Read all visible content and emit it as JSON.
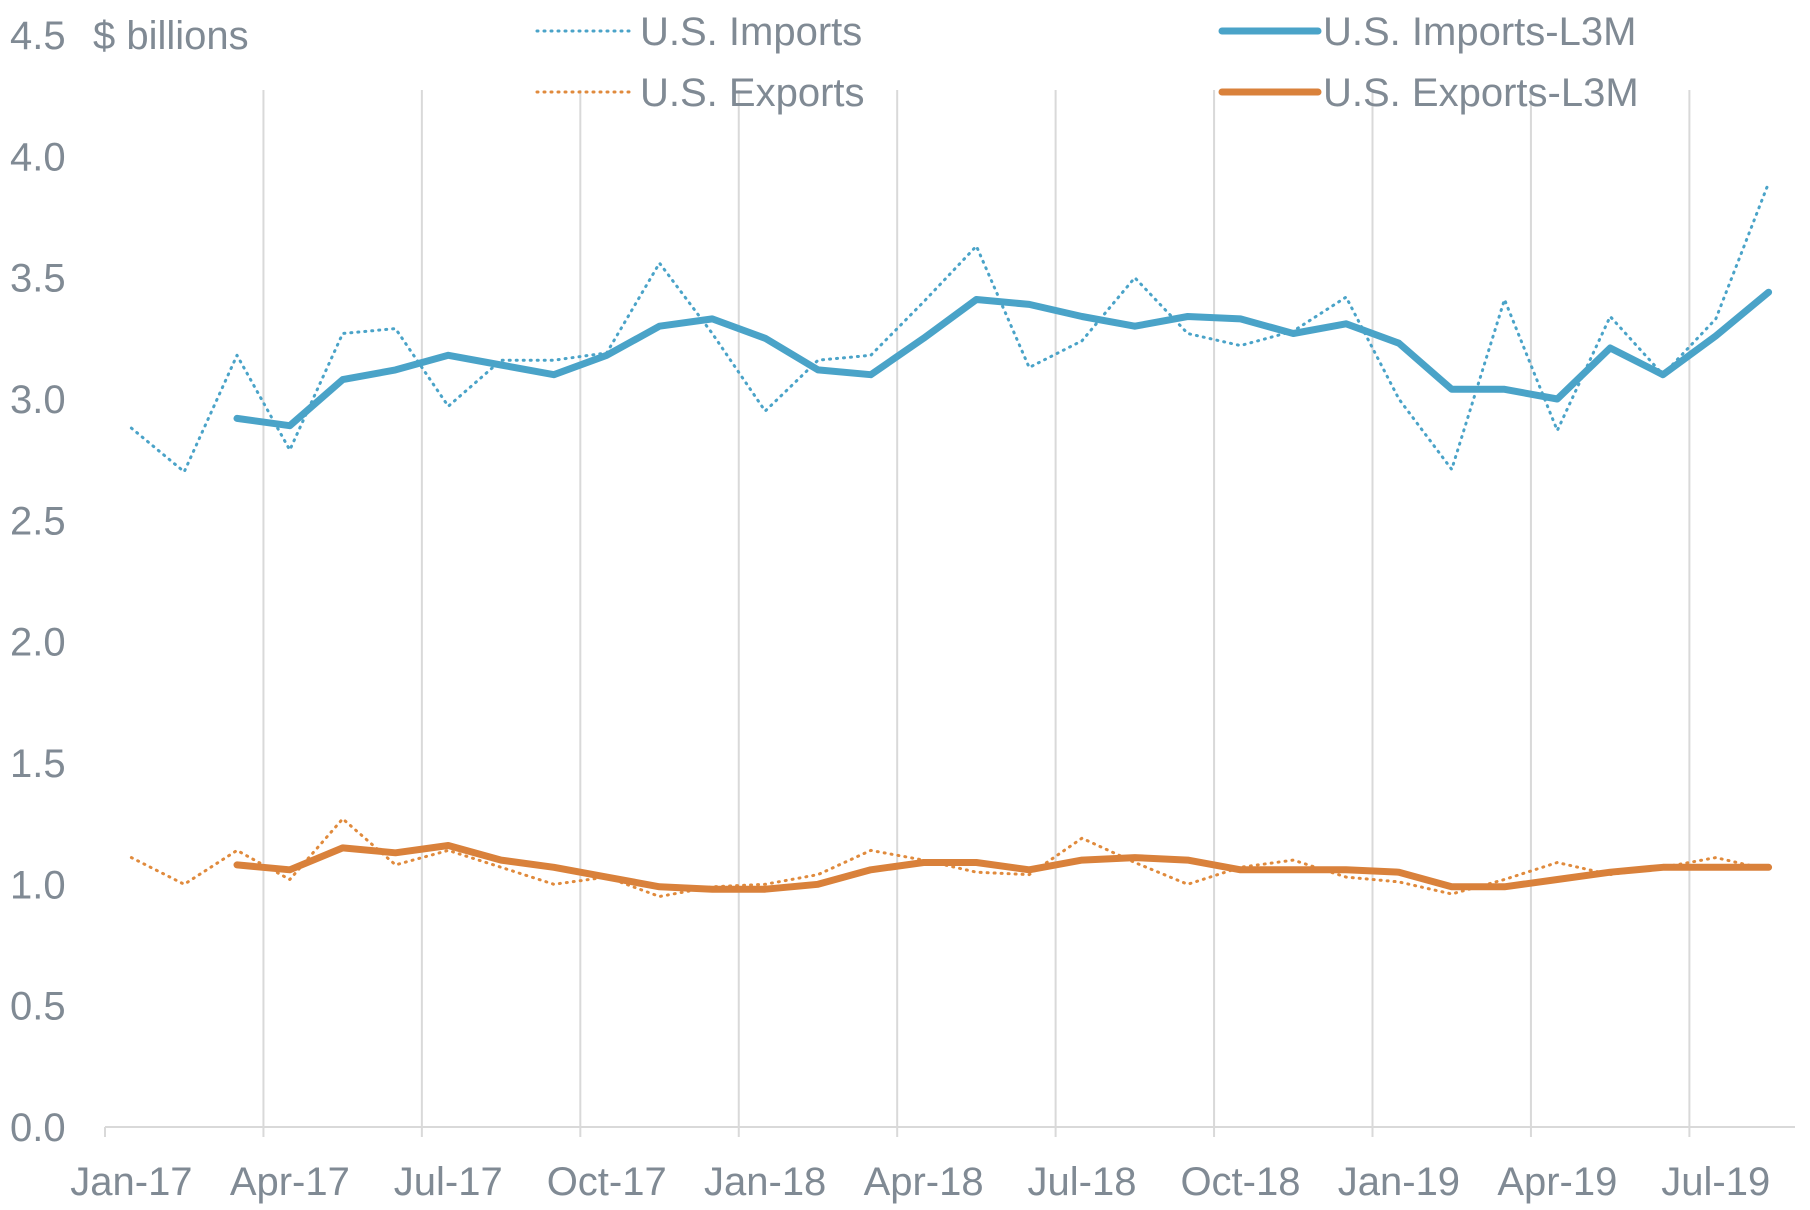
{
  "chart_data": {
    "type": "line",
    "title": "",
    "unit_label": "$ billions",
    "ylabel": "$ billions",
    "xlabel": "",
    "ylim": [
      0,
      4.5
    ],
    "yticks": [
      "0.0",
      "0.5",
      "1.0",
      "1.5",
      "2.0",
      "2.5",
      "3.0",
      "3.5",
      "4.0",
      "4.5"
    ],
    "ytick_values": [
      0,
      0.5,
      1.0,
      1.5,
      2.0,
      2.5,
      3.0,
      3.5,
      4.0,
      4.5
    ],
    "xticks": [
      "Jan-17",
      "Apr-17",
      "Jul-17",
      "Oct-17",
      "Jan-18",
      "Apr-18",
      "Jul-18",
      "Oct-18",
      "Jan-19",
      "Apr-19",
      "Jul-19"
    ],
    "xtick_indices": [
      0,
      3,
      6,
      9,
      12,
      15,
      18,
      21,
      24,
      27,
      30
    ],
    "grid": "vertical",
    "legend_position": "top",
    "categories": [
      "Jan-17",
      "Feb-17",
      "Mar-17",
      "Apr-17",
      "May-17",
      "Jun-17",
      "Jul-17",
      "Aug-17",
      "Sep-17",
      "Oct-17",
      "Nov-17",
      "Dec-17",
      "Jan-18",
      "Feb-18",
      "Mar-18",
      "Apr-18",
      "May-18",
      "Jun-18",
      "Jul-18",
      "Aug-18",
      "Sep-18",
      "Oct-18",
      "Nov-18",
      "Dec-18",
      "Jan-19",
      "Feb-19",
      "Mar-19",
      "Apr-19",
      "May-19",
      "Jun-19",
      "Jul-19",
      "Aug-19"
    ],
    "series": [
      {
        "name": "U.S. Imports",
        "style": "dotted",
        "color": "#4aa3c8",
        "values": [
          2.88,
          2.7,
          3.18,
          2.79,
          3.27,
          3.29,
          2.97,
          3.16,
          3.16,
          3.19,
          3.56,
          3.27,
          2.95,
          3.16,
          3.18,
          3.4,
          3.63,
          3.13,
          3.24,
          3.5,
          3.27,
          3.22,
          3.28,
          3.42,
          3.0,
          2.71,
          3.41,
          2.87,
          3.34,
          3.1,
          3.33,
          3.89
        ]
      },
      {
        "name": "U.S. Imports-L3M",
        "style": "solid",
        "color": "#4aa3c8",
        "values": [
          null,
          null,
          2.92,
          2.89,
          3.08,
          3.12,
          3.18,
          3.14,
          3.1,
          3.18,
          3.3,
          3.33,
          3.25,
          3.12,
          3.1,
          3.25,
          3.41,
          3.39,
          3.34,
          3.3,
          3.34,
          3.33,
          3.27,
          3.31,
          3.23,
          3.04,
          3.04,
          3.0,
          3.21,
          3.1,
          3.26,
          3.44
        ]
      },
      {
        "name": "U.S. Exports",
        "style": "dotted",
        "color": "#e08a3c",
        "values": [
          1.11,
          1.0,
          1.14,
          1.02,
          1.27,
          1.08,
          1.14,
          1.07,
          1.0,
          1.03,
          0.95,
          0.99,
          1.0,
          1.04,
          1.14,
          1.1,
          1.05,
          1.04,
          1.19,
          1.09,
          1.0,
          1.07,
          1.1,
          1.03,
          1.01,
          0.96,
          1.02,
          1.09,
          1.04,
          1.07,
          1.11,
          1.06
        ]
      },
      {
        "name": "U.S. Exports-L3M",
        "style": "solid",
        "color": "#d9813b",
        "values": [
          null,
          null,
          1.08,
          1.06,
          1.15,
          1.13,
          1.16,
          1.1,
          1.07,
          1.03,
          0.99,
          0.98,
          0.98,
          1.0,
          1.06,
          1.09,
          1.09,
          1.06,
          1.1,
          1.11,
          1.1,
          1.06,
          1.06,
          1.06,
          1.05,
          0.99,
          0.99,
          1.02,
          1.05,
          1.07,
          1.07,
          1.07
        ]
      }
    ]
  }
}
